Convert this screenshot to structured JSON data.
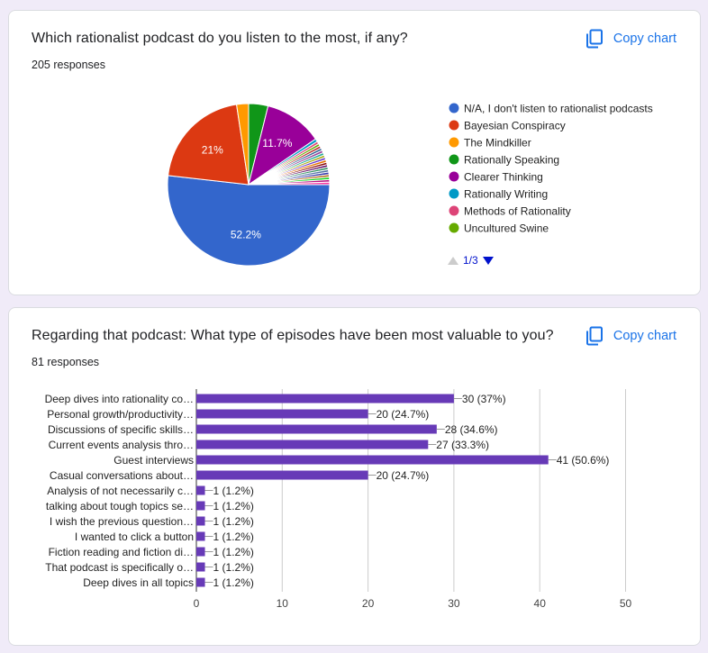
{
  "card1": {
    "title": "Which rationalist podcast do you listen to the most, if any?",
    "responses": "205 responses",
    "copy_label": "Copy chart"
  },
  "card2": {
    "title": "Regarding that podcast: What type of episodes have been most valuable to you?",
    "responses": "81 responses",
    "copy_label": "Copy chart"
  },
  "chart_data": [
    {
      "type": "pie",
      "title": "Which rationalist podcast do you listen to the most, if any?",
      "total_responses": 205,
      "slices": [
        {
          "label": "N/A, I don't listen to rationalist podcasts",
          "percent": 52.2,
          "color": "#3366cc",
          "data_label": "52.2%"
        },
        {
          "label": "Bayesian Conspiracy",
          "percent": 21.0,
          "color": "#dc3912",
          "data_label": "21%"
        },
        {
          "label": "The Mindkiller",
          "percent": 2.4,
          "color": "#ff9900",
          "data_label": ""
        },
        {
          "label": "Rationally Speaking",
          "percent": 3.9,
          "color": "#109618",
          "data_label": ""
        },
        {
          "label": "Clearer Thinking",
          "percent": 11.7,
          "color": "#990099",
          "data_label": "11.7%"
        },
        {
          "label": "Rationally Writing",
          "percent": 0.6,
          "color": "#0099c6",
          "data_label": ""
        },
        {
          "label": "Methods of Rationality",
          "percent": 0.5,
          "color": "#dd4477",
          "data_label": ""
        },
        {
          "label": "Uncultured Swine",
          "percent": 0.5,
          "color": "#66aa00",
          "data_label": ""
        },
        {
          "label": "",
          "percent": 0.5,
          "color": "#b82e2e",
          "data_label": ""
        },
        {
          "label": "",
          "percent": 0.5,
          "color": "#316395",
          "data_label": ""
        },
        {
          "label": "",
          "percent": 0.5,
          "color": "#994499",
          "data_label": ""
        },
        {
          "label": "",
          "percent": 0.5,
          "color": "#22aa99",
          "data_label": ""
        },
        {
          "label": "",
          "percent": 0.5,
          "color": "#aaaa11",
          "data_label": ""
        },
        {
          "label": "",
          "percent": 0.5,
          "color": "#6633cc",
          "data_label": ""
        },
        {
          "label": "",
          "percent": 0.5,
          "color": "#e67300",
          "data_label": ""
        },
        {
          "label": "",
          "percent": 0.5,
          "color": "#8b0707",
          "data_label": ""
        },
        {
          "label": "",
          "percent": 0.5,
          "color": "#651067",
          "data_label": ""
        },
        {
          "label": "",
          "percent": 0.5,
          "color": "#329262",
          "data_label": ""
        },
        {
          "label": "",
          "percent": 0.5,
          "color": "#5574a6",
          "data_label": ""
        },
        {
          "label": "",
          "percent": 0.5,
          "color": "#3b3eac",
          "data_label": ""
        },
        {
          "label": "",
          "percent": 0.5,
          "color": "#b77322",
          "data_label": ""
        },
        {
          "label": "",
          "percent": 0.5,
          "color": "#16d620",
          "data_label": ""
        },
        {
          "label": "",
          "percent": 0.5,
          "color": "#b91383",
          "data_label": ""
        },
        {
          "label": "",
          "percent": 0.5,
          "color": "#f4359e",
          "data_label": ""
        }
      ],
      "legend": {
        "placement": "right",
        "page_label": "1/3"
      }
    },
    {
      "type": "bar",
      "orientation": "horizontal",
      "title": "Regarding that podcast: What type of episodes have been most valuable to you?",
      "total_responses": 81,
      "bar_color": "#673ab7",
      "categories": [
        "Deep dives into rationality co…",
        "Personal growth/productivity…",
        "Discussions of specific skills…",
        "Current events analysis thro…",
        "Guest interviews",
        "Casual conversations about…",
        "Analysis of not necessarily c…",
        "talking about tough topics se…",
        "I wish the previous question…",
        "I wanted to click a button",
        "Fiction reading and fiction di…",
        "That podcast is specifically o…",
        "Deep dives in all topics"
      ],
      "values": [
        30,
        20,
        28,
        27,
        41,
        20,
        1,
        1,
        1,
        1,
        1,
        1,
        1
      ],
      "data_labels": [
        "30 (37%)",
        "20 (24.7%)",
        "28 (34.6%)",
        "27 (33.3%)",
        "41 (50.6%)",
        "20 (24.7%)",
        "1 (1.2%)",
        "1 (1.2%)",
        "1 (1.2%)",
        "1 (1.2%)",
        "1 (1.2%)",
        "1 (1.2%)",
        "1 (1.2%)"
      ],
      "xlim": [
        0,
        50
      ],
      "xticks": [
        0,
        10,
        20,
        30,
        40,
        50
      ],
      "grid": true
    }
  ]
}
